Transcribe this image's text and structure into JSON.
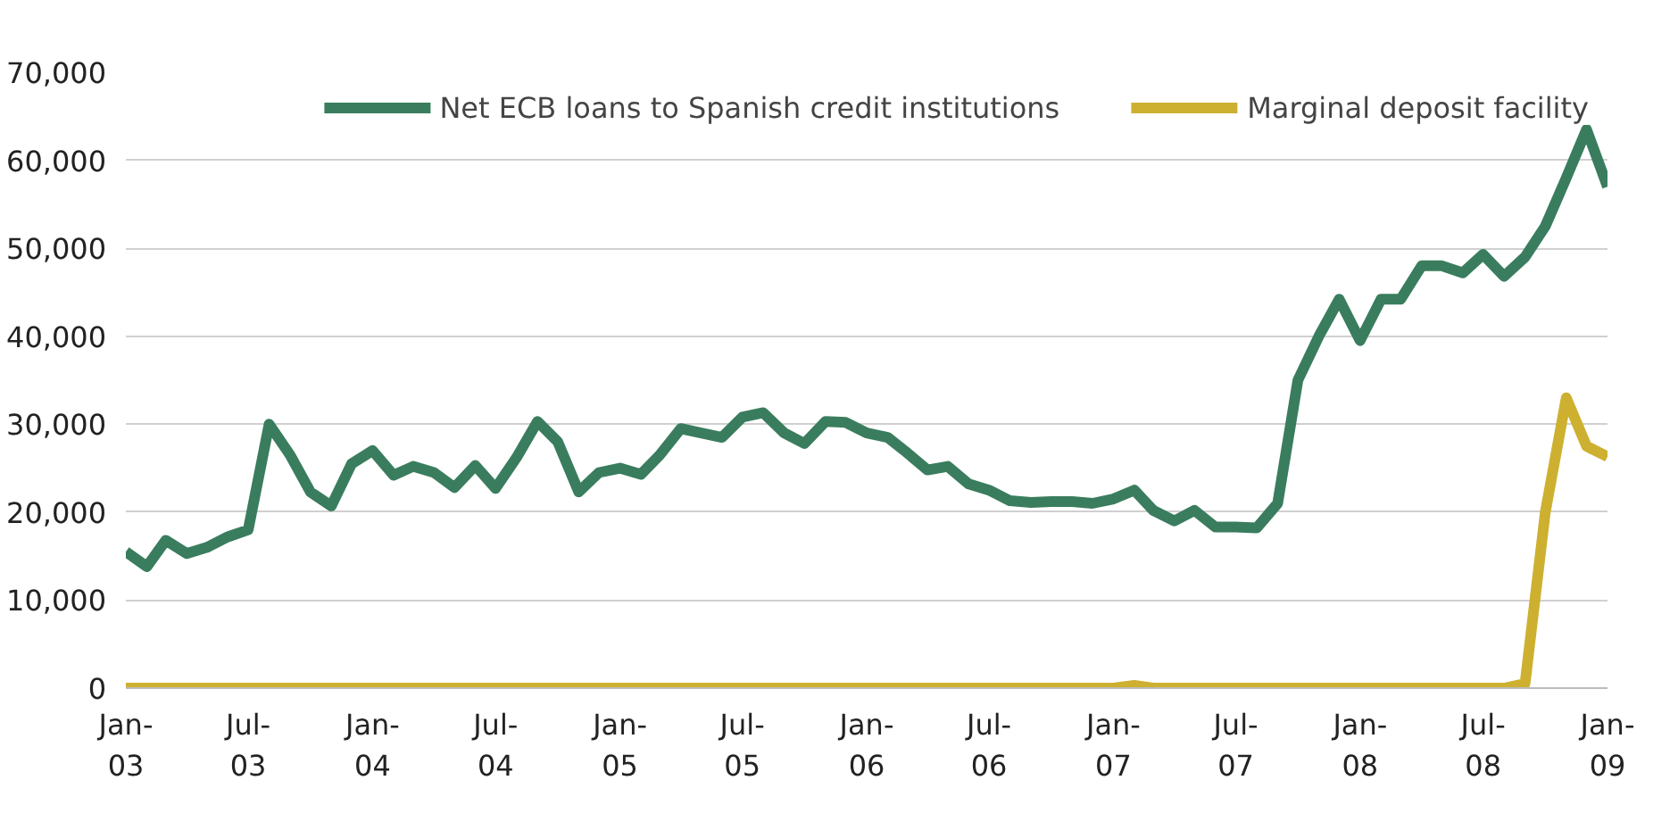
{
  "chart_data": {
    "type": "line",
    "x": [
      "2003-01",
      "2003-02",
      "2003-03",
      "2003-04",
      "2003-05",
      "2003-06",
      "2003-07",
      "2003-08",
      "2003-09",
      "2003-10",
      "2003-11",
      "2003-12",
      "2004-01",
      "2004-02",
      "2004-03",
      "2004-04",
      "2004-05",
      "2004-06",
      "2004-07",
      "2004-08",
      "2004-09",
      "2004-10",
      "2004-11",
      "2004-12",
      "2005-01",
      "2005-02",
      "2005-03",
      "2005-04",
      "2005-05",
      "2005-06",
      "2005-07",
      "2005-08",
      "2005-09",
      "2005-10",
      "2005-11",
      "2005-12",
      "2006-01",
      "2006-02",
      "2006-03",
      "2006-04",
      "2006-05",
      "2006-06",
      "2006-07",
      "2006-08",
      "2006-09",
      "2006-10",
      "2006-11",
      "2006-12",
      "2007-01",
      "2007-02",
      "2007-03",
      "2007-04",
      "2007-05",
      "2007-06",
      "2007-07",
      "2007-08",
      "2007-09",
      "2007-10",
      "2007-11",
      "2007-12",
      "2008-01",
      "2008-02",
      "2008-03",
      "2008-04",
      "2008-05",
      "2008-06",
      "2008-07",
      "2008-08",
      "2008-09",
      "2008-10",
      "2008-11",
      "2008-12",
      "2009-01"
    ],
    "series": [
      {
        "name": "Net ECB loans to Spanish credit institutions",
        "color": "#3a7d5e",
        "values": [
          15500,
          13800,
          16800,
          15300,
          16000,
          17200,
          18000,
          30000,
          26500,
          22300,
          20700,
          25500,
          27000,
          24200,
          25200,
          24500,
          22800,
          25300,
          22700,
          26200,
          30300,
          28000,
          22300,
          24500,
          25000,
          24300,
          26500,
          29500,
          29000,
          28500,
          30800,
          31300,
          29000,
          27800,
          30300,
          30200,
          29000,
          28500,
          26800,
          24800,
          25200,
          23200,
          22500,
          21300,
          21100,
          21200,
          21200,
          21000,
          21500,
          22500,
          20200,
          19000,
          20200,
          18300,
          18300,
          18200,
          21000,
          35000,
          40000,
          44200,
          39500,
          44200,
          44200,
          48000,
          48000,
          47200,
          49300,
          46800,
          49000,
          52500,
          58000,
          63500,
          57000
        ]
      },
      {
        "name": "Marginal deposit facility",
        "color": "#cdb030",
        "values": [
          0,
          0,
          0,
          0,
          0,
          0,
          0,
          0,
          0,
          0,
          0,
          0,
          0,
          0,
          0,
          0,
          0,
          0,
          0,
          0,
          0,
          0,
          0,
          0,
          0,
          0,
          0,
          0,
          0,
          0,
          0,
          0,
          0,
          0,
          0,
          0,
          0,
          0,
          0,
          0,
          0,
          0,
          0,
          0,
          0,
          0,
          0,
          0,
          0,
          300,
          0,
          0,
          0,
          0,
          0,
          0,
          0,
          0,
          0,
          0,
          0,
          0,
          0,
          0,
          0,
          0,
          0,
          0,
          500,
          20000,
          33000,
          27500,
          26300
        ]
      }
    ],
    "xlim": [
      "2003-01",
      "2009-01"
    ],
    "xticks": [
      {
        "value": "2003-01",
        "label": "Jan-03"
      },
      {
        "value": "2003-07",
        "label": "Jul-03"
      },
      {
        "value": "2004-01",
        "label": "Jan-04"
      },
      {
        "value": "2004-07",
        "label": "Jul-04"
      },
      {
        "value": "2005-01",
        "label": "Jan-05"
      },
      {
        "value": "2005-07",
        "label": "Jul-05"
      },
      {
        "value": "2006-01",
        "label": "Jan-06"
      },
      {
        "value": "2006-07",
        "label": "Jul-06"
      },
      {
        "value": "2007-01",
        "label": "Jan-07"
      },
      {
        "value": "2007-07",
        "label": "Jul-07"
      },
      {
        "value": "2008-01",
        "label": "Jan-08"
      },
      {
        "value": "2008-07",
        "label": "Jul-08"
      },
      {
        "value": "2009-01",
        "label": "Jan-09"
      }
    ],
    "ylim": [
      0,
      70000
    ],
    "yticks": [
      {
        "value": 0,
        "label": "0"
      },
      {
        "value": 10000,
        "label": "10,000"
      },
      {
        "value": 20000,
        "label": "20,000"
      },
      {
        "value": 30000,
        "label": "30,000"
      },
      {
        "value": 40000,
        "label": "40,000"
      },
      {
        "value": 50000,
        "label": "50,000"
      },
      {
        "value": 60000,
        "label": "60,000"
      },
      {
        "value": 70000,
        "label": "70,000"
      }
    ],
    "grid": "y",
    "legend": "top",
    "marker": "none",
    "line_style": "solid"
  }
}
